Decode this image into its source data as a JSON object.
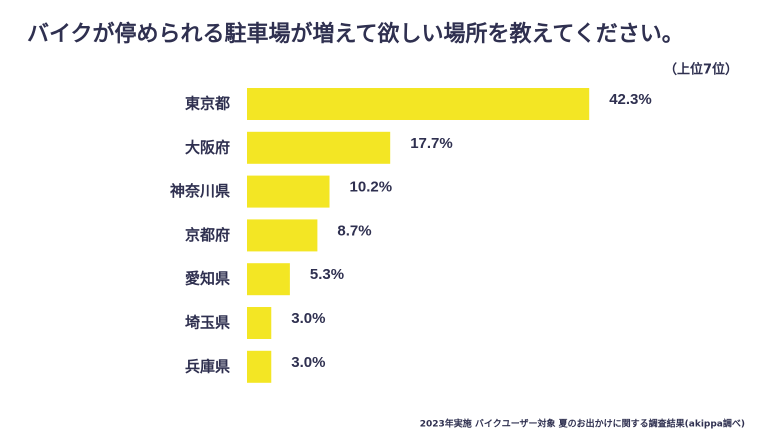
{
  "chart_data": {
    "type": "bar",
    "orientation": "horizontal",
    "title": "バイクが停められる駐車場が増えて欲しい場所を教えてください。",
    "subtitle": "（上位7位）",
    "source": "2023年実施 バイクユーザー対象 夏のお出かけに関する調査結果(akippa調べ)",
    "categories": [
      "東京都",
      "大阪府",
      "神奈川県",
      "京都府",
      "愛知県",
      "埼玉県",
      "兵庫県"
    ],
    "values": [
      42.3,
      17.7,
      10.2,
      8.7,
      5.3,
      3.0,
      3.0
    ],
    "value_labels": [
      "42.3%",
      "17.7%",
      "10.2%",
      "8.7%",
      "5.3%",
      "3.0%",
      "3.0%"
    ],
    "color": "#f3e624"
  }
}
